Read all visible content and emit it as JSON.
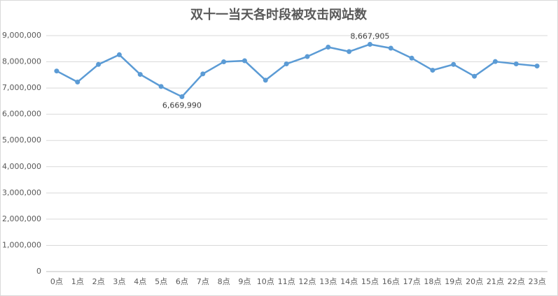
{
  "chart_data": {
    "type": "line",
    "title": "双十一当天各时段被攻击网站数",
    "categories": [
      "0点",
      "1点",
      "2点",
      "3点",
      "4点",
      "5点",
      "6点",
      "7点",
      "8点",
      "9点",
      "10点",
      "11点",
      "12点",
      "13点",
      "14点",
      "15点",
      "16点",
      "17点",
      "18点",
      "19点",
      "20点",
      "21点",
      "22点",
      "23点"
    ],
    "values": [
      7650000,
      7230000,
      7900000,
      8270000,
      7520000,
      7060000,
      6669990,
      7540000,
      8000000,
      8040000,
      7300000,
      7920000,
      8200000,
      8560000,
      8390000,
      8667905,
      8520000,
      8140000,
      7680000,
      7900000,
      7450000,
      8010000,
      7920000,
      7840000
    ],
    "value_labels": [
      null,
      null,
      null,
      null,
      null,
      null,
      "6,669,990",
      null,
      null,
      null,
      null,
      null,
      null,
      null,
      null,
      "8,667,905",
      null,
      null,
      null,
      null,
      null,
      null,
      null,
      null
    ],
    "color": "#5b9bd5",
    "ylim": [
      0,
      9000000
    ],
    "yticks": [
      0,
      {
        "value": 1000000,
        "label": "1,000,000"
      },
      {
        "value": 2000000,
        "label": "2,000,000"
      },
      {
        "value": 3000000,
        "label": "3,000,000"
      },
      {
        "value": 4000000,
        "label": "4,000,000"
      },
      {
        "value": 5000000,
        "label": "5,000,000"
      },
      {
        "value": 6000000,
        "label": "6,000,000"
      },
      {
        "value": 7000000,
        "label": "7,000,000"
      },
      {
        "value": 8000000,
        "label": "8,000,000"
      },
      {
        "value": 9000000,
        "label": "9,000,000"
      }
    ],
    "grid": true
  }
}
